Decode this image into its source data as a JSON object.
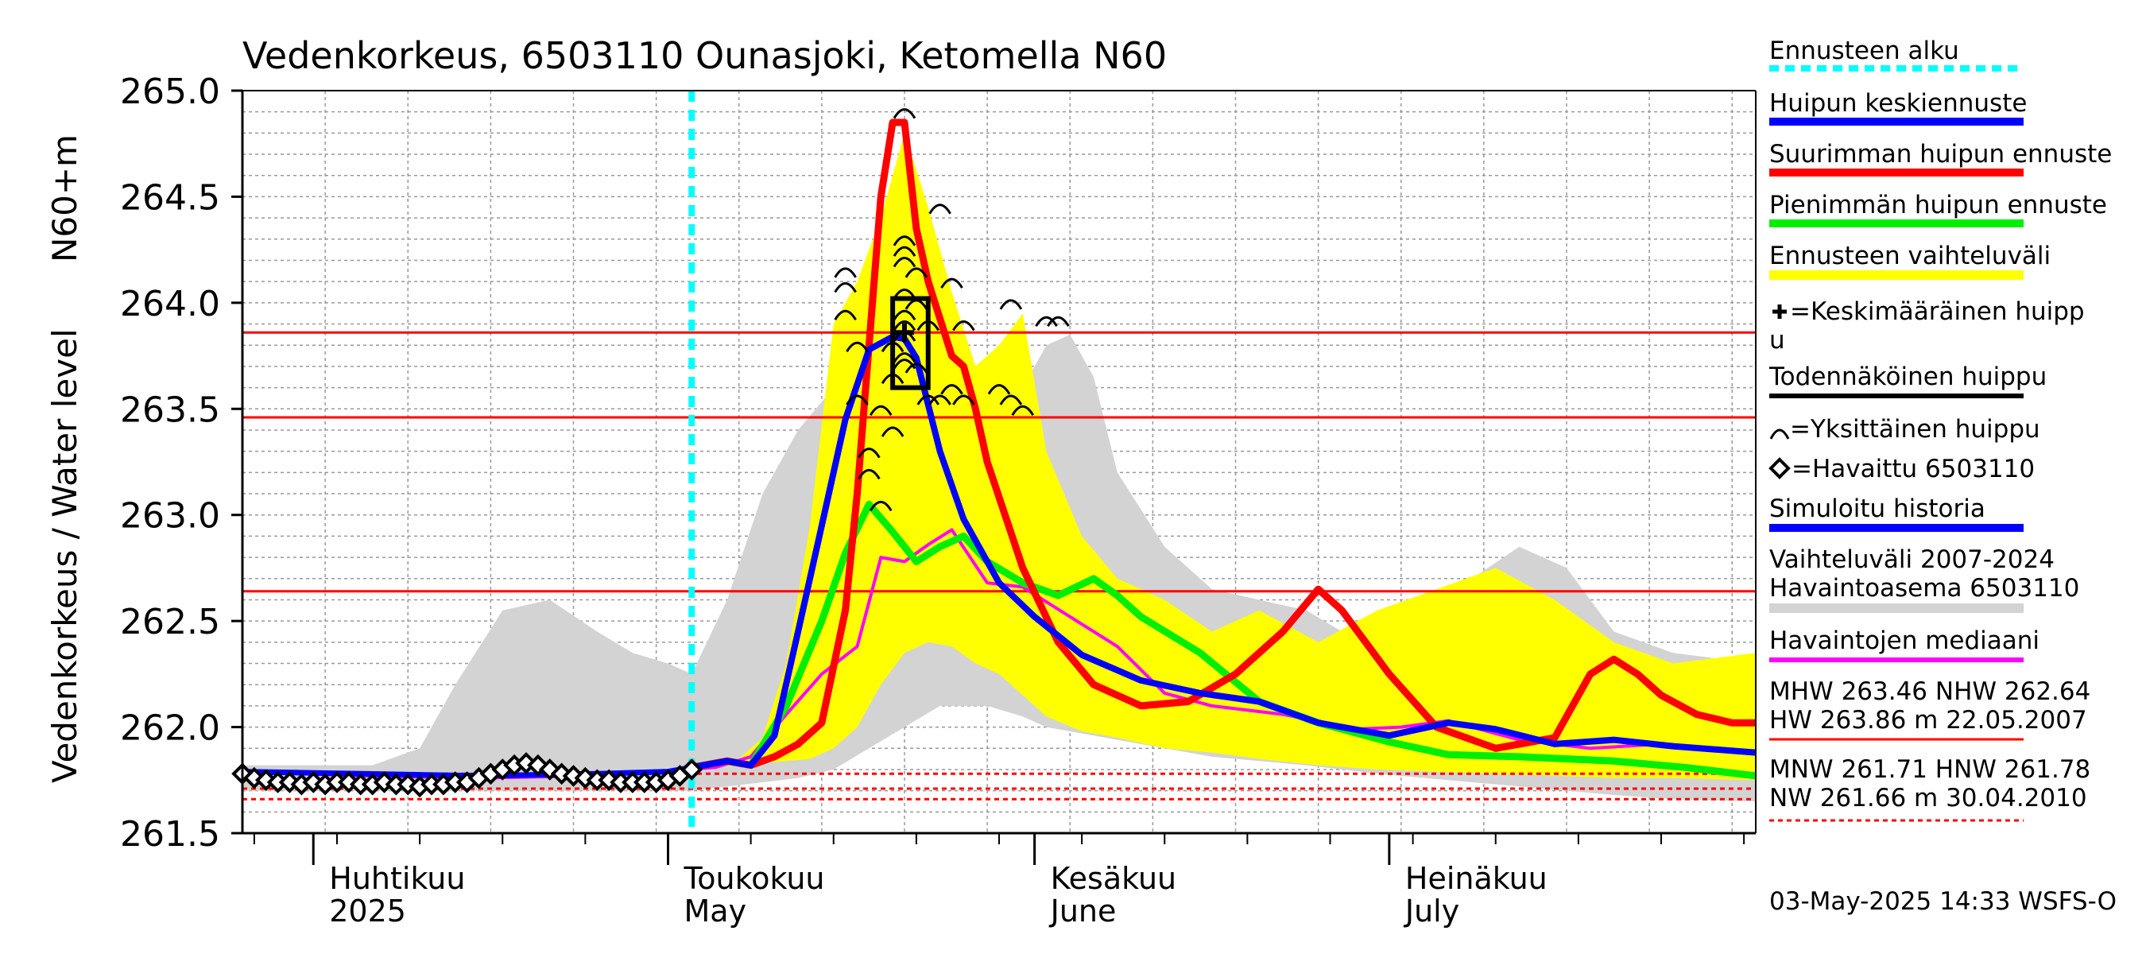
{
  "chart_data": {
    "type": "line",
    "title": "Vedenkorkeus, 6503110 Ounasjoki, Ketomella N60",
    "ylabel": "Vedenkorkeus / Water level",
    "yunit": "N60+m",
    "ylim": [
      261.5,
      265.0
    ],
    "yticks": [
      "261.5",
      "262.0",
      "262.5",
      "263.0",
      "263.5",
      "264.0",
      "264.5",
      "265.0"
    ],
    "xlim": [
      "2025-03-26",
      "2025-08-01"
    ],
    "month_labels": [
      {
        "fi": "Huhtikuu",
        "en": "2025",
        "date": "2025-04-01"
      },
      {
        "fi": "Toukokuu",
        "en": "May",
        "date": "2025-05-01"
      },
      {
        "fi": "Kesäkuu",
        "en": "June",
        "date": "2025-06-01"
      },
      {
        "fi": "Heinäkuu",
        "en": "July",
        "date": "2025-07-01"
      }
    ],
    "forecast_start": "2025-05-03",
    "reference_lines": [
      {
        "name": "HW",
        "value": 263.86,
        "style": "solid",
        "color": "#ff0000"
      },
      {
        "name": "MHW",
        "value": 263.46,
        "style": "solid",
        "color": "#ff0000"
      },
      {
        "name": "NHW",
        "value": 262.64,
        "style": "solid",
        "color": "#ff0000"
      },
      {
        "name": "HNW",
        "value": 261.78,
        "style": "dashed",
        "color": "#ff0000"
      },
      {
        "name": "MNW",
        "value": 261.71,
        "style": "dashed",
        "color": "#ff0000"
      },
      {
        "name": "NW",
        "value": 261.66,
        "style": "dashed",
        "color": "#ff0000"
      }
    ],
    "observed": {
      "name": "Havaittu 6503110",
      "x": [
        "2025-03-26",
        "2025-03-27",
        "2025-03-28",
        "2025-03-29",
        "2025-03-30",
        "2025-03-31",
        "2025-04-01",
        "2025-04-02",
        "2025-04-03",
        "2025-04-04",
        "2025-04-05",
        "2025-04-06",
        "2025-04-07",
        "2025-04-08",
        "2025-04-09",
        "2025-04-10",
        "2025-04-11",
        "2025-04-12",
        "2025-04-13",
        "2025-04-14",
        "2025-04-15",
        "2025-04-16",
        "2025-04-17",
        "2025-04-18",
        "2025-04-19",
        "2025-04-20",
        "2025-04-21",
        "2025-04-22",
        "2025-04-23",
        "2025-04-24",
        "2025-04-25",
        "2025-04-26",
        "2025-04-27",
        "2025-04-28",
        "2025-04-29",
        "2025-04-30",
        "2025-05-01",
        "2025-05-02",
        "2025-05-03"
      ],
      "y": [
        261.78,
        261.76,
        261.75,
        261.74,
        261.74,
        261.73,
        261.74,
        261.73,
        261.74,
        261.74,
        261.73,
        261.73,
        261.74,
        261.73,
        261.73,
        261.72,
        261.73,
        261.73,
        261.74,
        261.74,
        261.76,
        261.78,
        261.8,
        261.82,
        261.83,
        261.82,
        261.8,
        261.78,
        261.77,
        261.76,
        261.75,
        261.75,
        261.74,
        261.74,
        261.74,
        261.74,
        261.75,
        261.77,
        261.8
      ]
    },
    "median": {
      "name": "Havaintojen mediaani",
      "color": "#ff00ff",
      "x": [
        "2025-03-26",
        "2025-04-05",
        "2025-04-15",
        "2025-04-25",
        "2025-05-05",
        "2025-05-08",
        "2025-05-11",
        "2025-05-14",
        "2025-05-17",
        "2025-05-19",
        "2025-05-21",
        "2025-05-23",
        "2025-05-25",
        "2025-05-28",
        "2025-05-31",
        "2025-06-04",
        "2025-06-08",
        "2025-06-12",
        "2025-06-16",
        "2025-06-22",
        "2025-06-28",
        "2025-07-02",
        "2025-07-06",
        "2025-07-12",
        "2025-07-18",
        "2025-07-24",
        "2025-08-01"
      ],
      "y": [
        261.79,
        261.77,
        261.76,
        261.77,
        261.81,
        261.86,
        262.06,
        262.25,
        262.38,
        262.8,
        262.78,
        262.86,
        262.93,
        262.68,
        262.66,
        262.52,
        262.38,
        262.16,
        262.1,
        262.06,
        261.99,
        262.0,
        262.03,
        261.94,
        261.9,
        261.92,
        261.88
      ]
    },
    "sim_history": {
      "name": "Simuloitu historia",
      "color": "#0000ff",
      "x": [
        "2025-03-26",
        "2025-04-05",
        "2025-04-15",
        "2025-04-25",
        "2025-05-01",
        "2025-05-03"
      ],
      "y": [
        261.79,
        261.78,
        261.77,
        261.78,
        261.79,
        261.81
      ]
    },
    "mean_forecast": {
      "name": "Huipun keskiennuste",
      "color": "#0000ff",
      "x": [
        "2025-05-03",
        "2025-05-06",
        "2025-05-08",
        "2025-05-10",
        "2025-05-12",
        "2025-05-14",
        "2025-05-16",
        "2025-05-18",
        "2025-05-20",
        "2025-05-21",
        "2025-05-22",
        "2025-05-24",
        "2025-05-26",
        "2025-05-29",
        "2025-06-01",
        "2025-06-05",
        "2025-06-10",
        "2025-06-15",
        "2025-06-20",
        "2025-06-25",
        "2025-07-01",
        "2025-07-06",
        "2025-07-10",
        "2025-07-15",
        "2025-07-20",
        "2025-07-25",
        "2025-08-01"
      ],
      "y": [
        261.81,
        261.84,
        261.82,
        261.96,
        262.45,
        262.95,
        263.45,
        263.78,
        263.84,
        263.83,
        263.74,
        263.3,
        262.98,
        262.68,
        262.52,
        262.34,
        262.22,
        262.16,
        262.12,
        262.02,
        261.96,
        262.02,
        261.99,
        261.92,
        261.94,
        261.91,
        261.88
      ]
    },
    "max_forecast": {
      "name": "Suurimman huipun ennuste",
      "color": "#ff0000",
      "x": [
        "2025-05-03",
        "2025-05-06",
        "2025-05-08",
        "2025-05-10",
        "2025-05-12",
        "2025-05-14",
        "2025-05-16",
        "2025-05-17",
        "2025-05-18",
        "2025-05-19",
        "2025-05-20",
        "2025-05-21",
        "2025-05-22",
        "2025-05-23",
        "2025-05-25",
        "2025-05-26",
        "2025-05-27",
        "2025-05-28",
        "2025-05-31",
        "2025-06-03",
        "2025-06-06",
        "2025-06-10",
        "2025-06-14",
        "2025-06-18",
        "2025-06-22",
        "2025-06-25",
        "2025-06-27",
        "2025-07-01",
        "2025-07-05",
        "2025-07-10",
        "2025-07-15",
        "2025-07-18",
        "2025-07-20",
        "2025-07-22",
        "2025-07-24",
        "2025-07-27",
        "2025-07-30",
        "2025-08-01"
      ],
      "y": [
        261.81,
        261.84,
        261.82,
        261.86,
        261.92,
        262.02,
        262.55,
        263.1,
        263.8,
        264.5,
        264.85,
        264.85,
        264.35,
        264.1,
        263.75,
        263.7,
        263.5,
        263.25,
        262.75,
        262.4,
        262.2,
        262.1,
        262.12,
        262.25,
        262.45,
        262.65,
        262.55,
        262.25,
        262.0,
        261.9,
        261.95,
        262.25,
        262.32,
        262.25,
        262.15,
        262.06,
        262.02,
        262.02
      ]
    },
    "min_forecast": {
      "name": "Pienimmän huipun ennuste",
      "color": "#00ee00",
      "x": [
        "2025-05-03",
        "2025-05-06",
        "2025-05-08",
        "2025-05-11",
        "2025-05-14",
        "2025-05-16",
        "2025-05-18",
        "2025-05-20",
        "2025-05-22",
        "2025-05-24",
        "2025-05-26",
        "2025-05-28",
        "2025-05-31",
        "2025-06-03",
        "2025-06-06",
        "2025-06-08",
        "2025-06-10",
        "2025-06-15",
        "2025-06-20",
        "2025-06-25",
        "2025-07-01",
        "2025-07-06",
        "2025-07-12",
        "2025-07-20",
        "2025-07-26",
        "2025-08-01"
      ],
      "y": [
        261.81,
        261.84,
        261.82,
        262.1,
        262.5,
        262.82,
        263.05,
        262.92,
        262.78,
        262.85,
        262.9,
        262.78,
        262.68,
        262.62,
        262.7,
        262.62,
        262.52,
        262.35,
        262.12,
        262.02,
        261.93,
        261.87,
        261.86,
        261.84,
        261.81,
        261.77
      ]
    },
    "forecast_band": {
      "name": "Ennusteen vaihteluväli",
      "color": "#ffff00",
      "x": [
        "2025-05-03",
        "2025-05-07",
        "2025-05-09",
        "2025-05-11",
        "2025-05-13",
        "2025-05-15",
        "2025-05-17",
        "2025-05-19",
        "2025-05-21",
        "2025-05-23",
        "2025-05-25",
        "2025-05-27",
        "2025-05-29",
        "2025-05-31",
        "2025-06-02",
        "2025-06-05",
        "2025-06-08",
        "2025-06-12",
        "2025-06-16",
        "2025-06-20",
        "2025-06-25",
        "2025-06-30",
        "2025-07-05",
        "2025-07-10",
        "2025-07-15",
        "2025-07-20",
        "2025-07-25",
        "2025-08-01"
      ],
      "upper": [
        261.82,
        261.85,
        261.95,
        262.3,
        262.95,
        263.9,
        264.1,
        264.4,
        264.8,
        264.45,
        264.05,
        263.7,
        263.8,
        263.95,
        263.3,
        262.9,
        262.7,
        262.6,
        262.45,
        262.55,
        262.4,
        262.55,
        262.65,
        262.75,
        262.6,
        262.4,
        262.3,
        262.35
      ],
      "lower": [
        261.8,
        261.82,
        261.83,
        261.84,
        261.85,
        261.9,
        262.0,
        262.2,
        262.35,
        262.4,
        262.38,
        262.3,
        262.25,
        262.15,
        262.05,
        261.98,
        261.95,
        261.9,
        261.88,
        261.85,
        261.82,
        261.8,
        261.79,
        261.78,
        261.77,
        261.76,
        261.76,
        261.75
      ]
    },
    "historic_band": {
      "name": "Vaihteluväli 2007-2024 Havaintoasema 6503110",
      "color": "#d3d3d3",
      "x": [
        "2025-03-26",
        "2025-04-06",
        "2025-04-10",
        "2025-04-13",
        "2025-04-17",
        "2025-04-21",
        "2025-04-25",
        "2025-04-28",
        "2025-05-01",
        "2025-05-03",
        "2025-05-06",
        "2025-05-09",
        "2025-05-12",
        "2025-05-15",
        "2025-05-18",
        "2025-05-21",
        "2025-05-24",
        "2025-05-28",
        "2025-05-31",
        "2025-06-02",
        "2025-06-04",
        "2025-06-06",
        "2025-06-08",
        "2025-06-12",
        "2025-06-16",
        "2025-06-20",
        "2025-06-24",
        "2025-06-27",
        "2025-06-30",
        "2025-07-04",
        "2025-07-08",
        "2025-07-12",
        "2025-07-16",
        "2025-07-20",
        "2025-07-25",
        "2025-08-01"
      ],
      "upper": [
        261.82,
        261.82,
        261.9,
        262.2,
        262.55,
        262.6,
        262.45,
        262.35,
        262.3,
        262.25,
        262.6,
        263.1,
        263.4,
        263.6,
        263.7,
        263.75,
        263.8,
        263.55,
        263.6,
        263.8,
        263.85,
        263.65,
        263.2,
        262.85,
        262.65,
        262.6,
        262.55,
        262.45,
        262.4,
        262.55,
        262.7,
        262.85,
        262.75,
        262.45,
        262.35,
        262.3
      ],
      "lower": [
        261.7,
        261.7,
        261.7,
        261.7,
        261.7,
        261.7,
        261.7,
        261.7,
        261.7,
        261.7,
        261.72,
        261.74,
        261.76,
        261.8,
        261.9,
        262.0,
        262.1,
        262.1,
        262.05,
        262.0,
        261.98,
        261.96,
        261.94,
        261.9,
        261.86,
        261.84,
        261.82,
        261.8,
        261.78,
        261.76,
        261.74,
        261.72,
        261.7,
        261.68,
        261.66,
        261.65
      ]
    },
    "mean_peak": {
      "date": "2025-05-21",
      "value": 263.86
    },
    "probable_peak_box": {
      "x0": "2025-05-20",
      "x1": "2025-05-23",
      "y0": 263.6,
      "y1": 264.02
    },
    "individual_peaks": [
      {
        "date": "2025-05-16",
        "value": 264.15
      },
      {
        "date": "2025-05-16",
        "value": 264.08
      },
      {
        "date": "2025-05-16",
        "value": 263.95
      },
      {
        "date": "2025-05-17",
        "value": 263.8
      },
      {
        "date": "2025-05-17",
        "value": 263.55
      },
      {
        "date": "2025-05-18",
        "value": 263.3
      },
      {
        "date": "2025-05-18",
        "value": 263.2
      },
      {
        "date": "2025-05-19",
        "value": 263.5
      },
      {
        "date": "2025-05-19",
        "value": 263.05
      },
      {
        "date": "2025-05-20",
        "value": 263.8
      },
      {
        "date": "2025-05-20",
        "value": 263.65
      },
      {
        "date": "2025-05-20",
        "value": 263.4
      },
      {
        "date": "2025-05-21",
        "value": 264.9
      },
      {
        "date": "2025-05-21",
        "value": 264.3
      },
      {
        "date": "2025-05-21",
        "value": 264.25
      },
      {
        "date": "2025-05-21",
        "value": 264.2
      },
      {
        "date": "2025-05-21",
        "value": 264.05
      },
      {
        "date": "2025-05-21",
        "value": 263.95
      },
      {
        "date": "2025-05-21",
        "value": 263.9
      },
      {
        "date": "2025-05-21",
        "value": 263.85
      },
      {
        "date": "2025-05-21",
        "value": 263.75
      },
      {
        "date": "2025-05-21",
        "value": 263.72
      },
      {
        "date": "2025-05-22",
        "value": 264.15
      },
      {
        "date": "2025-05-22",
        "value": 264.0
      },
      {
        "date": "2025-05-22",
        "value": 263.7
      },
      {
        "date": "2025-05-23",
        "value": 263.9
      },
      {
        "date": "2025-05-23",
        "value": 263.55
      },
      {
        "date": "2025-05-24",
        "value": 264.45
      },
      {
        "date": "2025-05-24",
        "value": 263.55
      },
      {
        "date": "2025-05-25",
        "value": 264.1
      },
      {
        "date": "2025-05-25",
        "value": 263.6
      },
      {
        "date": "2025-05-26",
        "value": 263.9
      },
      {
        "date": "2025-05-26",
        "value": 263.55
      },
      {
        "date": "2025-05-29",
        "value": 263.6
      },
      {
        "date": "2025-05-30",
        "value": 264.0
      },
      {
        "date": "2025-05-30",
        "value": 263.55
      },
      {
        "date": "2025-05-31",
        "value": 263.5
      },
      {
        "date": "2025-06-02",
        "value": 263.92
      },
      {
        "date": "2025-06-03",
        "value": 263.92
      }
    ]
  },
  "legend": {
    "forecast_start": {
      "label": "Ennusteen alku",
      "color": "#00ffff"
    },
    "mean_forecast": {
      "label": "Huipun keskiennuste",
      "color": "#0000ff"
    },
    "max_forecast": {
      "label": "Suurimman huipun ennuste",
      "color": "#ff0000"
    },
    "min_forecast": {
      "label": "Pienimmän huipun ennuste",
      "color": "#00ee00"
    },
    "band": {
      "label": "Ennusteen vaihteluväli",
      "color": "#ffff00"
    },
    "mean_peak_line1": "=Keskimääräinen huipp",
    "mean_peak_line2": "u",
    "probable_peak": "Todennäköinen huippu",
    "individual_peak": "=Yksittäinen huippu",
    "observed": "=Havaittu 6503110",
    "sim_history": {
      "label": "Simuloitu historia",
      "color": "#0000ff"
    },
    "historic_band_line1": "Vaihteluväli 2007-2024",
    "historic_band_line2": " Havaintoasema 6503110",
    "median": {
      "label": "Havaintojen mediaani",
      "color": "#ff00ff"
    },
    "stats_line1": "MHW 263.46 NHW 262.64",
    "stats_line2": "HW 263.86 m 22.05.2007",
    "stats_line3": "MNW 261.71 HNW 261.78",
    "stats_line4": "NW 261.66 m 30.04.2010"
  },
  "footer": "03-May-2025 14:33 WSFS-O"
}
